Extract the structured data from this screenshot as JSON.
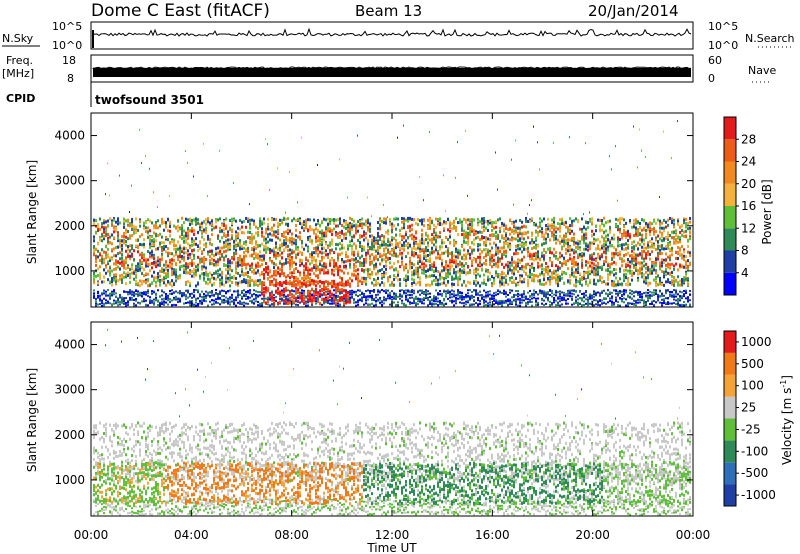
{
  "header": {
    "station": "Dome C East (fitACF)",
    "beam": "Beam 13",
    "date": "20/Jan/2014"
  },
  "chart_data": [
    {
      "type": "line",
      "ylabel": "N.Sky",
      "ylabel_right": "N.Search",
      "y_ticks_left": [
        "10^5",
        "10^0"
      ],
      "y_ticks_right": [
        "10^5",
        "10^0"
      ],
      "description_level": "nsky_high"
    },
    {
      "type": "line",
      "ylabel": "Freq.",
      "yunit": "[MHz]",
      "ylabel_right": "Nave",
      "y_ticks_left": [
        "18",
        "8"
      ],
      "y_ticks_right": [
        "60",
        "0"
      ]
    },
    {
      "type": "table",
      "label": "CPID",
      "value": "twofsound 3501"
    },
    {
      "type": "heatmap",
      "quantity": "Power",
      "ylabel": "Slant Range [km]",
      "y_ticks": [
        "1000",
        "2000",
        "3000",
        "4000"
      ],
      "ylim": [
        200,
        4500
      ],
      "colorbar_label": "Power [dB]",
      "colorbar_ticks": [
        "4",
        "8",
        "12",
        "16",
        "20",
        "24",
        "28"
      ],
      "colors": [
        "#0000ff",
        "#1f3fa5",
        "#2e8b57",
        "#5fbf3a",
        "#f4b23a",
        "#f08a1c",
        "#ef5a1a",
        "#e6191b"
      ]
    },
    {
      "type": "heatmap",
      "quantity": "Velocity",
      "ylabel": "Slant Range [km]",
      "y_ticks": [
        "1000",
        "2000",
        "3000",
        "4000"
      ],
      "ylim": [
        200,
        4500
      ],
      "colorbar_label": "Velocity  [m s",
      "colorbar_sup": "-1",
      "colorbar_label_end": "]",
      "colorbar_ticks": [
        "1000",
        "500",
        "100",
        "25",
        "-25",
        "-100",
        "-500",
        "-1000"
      ],
      "colors": [
        "#1f3fa5",
        "#2f6fb8",
        "#2e8b57",
        "#5fbf3a",
        "#c8c8c8",
        "#f4a23a",
        "#f07a1a",
        "#e6191b"
      ]
    }
  ],
  "x_axis": {
    "ticks": [
      "00:00",
      "04:00",
      "08:00",
      "12:00",
      "16:00",
      "20:00",
      "00:00"
    ],
    "label": "Time UT"
  }
}
